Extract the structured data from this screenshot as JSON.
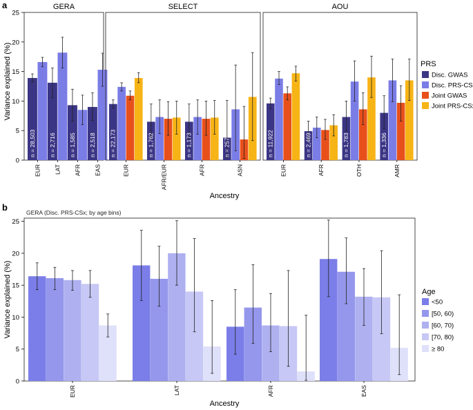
{
  "chart_data": [
    {
      "panel_label": "a",
      "type": "bar",
      "ylabel": "Variance explained (%)",
      "xlabel": "Ancestry",
      "ylim": [
        0,
        25
      ],
      "yticks": [
        0,
        5,
        10,
        15,
        20,
        25
      ],
      "legend": {
        "title": "PRS",
        "placement": "right",
        "items": [
          {
            "name": "Disc. GWAS",
            "color": "#3b3585"
          },
          {
            "name": "Disc. PRS-CSx",
            "color": "#7b7de6"
          },
          {
            "name": "Joint GWAS",
            "color": "#e8501b"
          },
          {
            "name": "Joint PRS-CSx",
            "color": "#f7b416"
          }
        ]
      },
      "facets": [
        {
          "title": "GERA",
          "groups": [
            {
              "label": "EUR",
              "n_label": "n = 28,503",
              "bars": [
                {
                  "series": "Disc. GWAS",
                  "value": 13.9,
                  "err": [
                    13.2,
                    14.6
                  ]
                },
                {
                  "series": "Disc. PRS-CSx",
                  "value": 16.6,
                  "err": [
                    15.8,
                    17.4
                  ]
                }
              ]
            },
            {
              "label": "LAT",
              "n_label": "n = 2,716",
              "bars": [
                {
                  "series": "Disc. GWAS",
                  "value": 13.1,
                  "err": [
                    10.6,
                    15.6
                  ]
                },
                {
                  "series": "Disc. PRS-CSx",
                  "value": 18.2,
                  "err": [
                    15.6,
                    20.8
                  ]
                }
              ]
            },
            {
              "label": "AFR",
              "n_label": "n = 1,585",
              "bars": [
                {
                  "series": "Disc. GWAS",
                  "value": 9.3,
                  "err": [
                    6.6,
                    12.0
                  ]
                },
                {
                  "series": "Disc. PRS-CSx",
                  "value": 8.5,
                  "err": [
                    6.0,
                    11.0
                  ]
                }
              ]
            },
            {
              "label": "EAS",
              "n_label": "n = 2,518",
              "bars": [
                {
                  "series": "Disc. GWAS",
                  "value": 9.0,
                  "err": [
                    6.7,
                    11.4
                  ]
                },
                {
                  "series": "Disc. PRS-CSx",
                  "value": 15.3,
                  "err": [
                    12.5,
                    18.1
                  ]
                }
              ]
            }
          ]
        },
        {
          "title": "SELECT",
          "groups": [
            {
              "label": "EUR",
              "n_label": "n = 22,173",
              "bars": [
                {
                  "series": "Disc. GWAS",
                  "value": 9.5,
                  "err": [
                    8.8,
                    10.2
                  ]
                },
                {
                  "series": "Disc. PRS-CSx",
                  "value": 12.4,
                  "err": [
                    11.7,
                    13.1
                  ]
                },
                {
                  "series": "Joint GWAS",
                  "value": 10.9,
                  "err": [
                    10.2,
                    11.7
                  ]
                },
                {
                  "series": "Joint PRS-CSx",
                  "value": 13.9,
                  "err": [
                    13.1,
                    14.8
                  ]
                }
              ]
            },
            {
              "label": "AFR/EUR",
              "n_label": "n = 1,762",
              "bars": [
                {
                  "series": "Disc. GWAS",
                  "value": 6.5,
                  "err": [
                    3.7,
                    9.5
                  ]
                },
                {
                  "series": "Disc. PRS-CSx",
                  "value": 7.3,
                  "err": [
                    4.5,
                    10.2
                  ]
                },
                {
                  "series": "Joint GWAS",
                  "value": 7.0,
                  "err": [
                    4.2,
                    9.9
                  ]
                },
                {
                  "series": "Joint PRS-CSx",
                  "value": 7.2,
                  "err": [
                    4.4,
                    10.0
                  ]
                }
              ]
            },
            {
              "label": "AFR",
              "n_label": "n = 1,173",
              "bars": [
                {
                  "series": "Disc. GWAS",
                  "value": 6.5,
                  "err": [
                    3.6,
                    9.5
                  ]
                },
                {
                  "series": "Disc. PRS-CSx",
                  "value": 7.3,
                  "err": [
                    4.4,
                    10.2
                  ]
                },
                {
                  "series": "Joint GWAS",
                  "value": 7.0,
                  "err": [
                    4.2,
                    10.0
                  ]
                },
                {
                  "series": "Joint PRS-CSx",
                  "value": 7.2,
                  "err": [
                    4.4,
                    10.1
                  ]
                }
              ]
            },
            {
              "label": "ASN",
              "n_label": "n = 257",
              "bars": [
                {
                  "series": "Disc. GWAS",
                  "value": 3.8,
                  "err": [
                    0.4,
                    10.1
                  ]
                },
                {
                  "series": "Disc. PRS-CSx",
                  "value": 8.6,
                  "err": [
                    1.6,
                    16.1
                  ]
                },
                {
                  "series": "Joint GWAS",
                  "value": 3.5,
                  "err": [
                    0.3,
                    9.1
                  ]
                },
                {
                  "series": "Joint PRS-CSx",
                  "value": 10.7,
                  "err": [
                    3.3,
                    18.2
                  ]
                }
              ]
            }
          ]
        },
        {
          "title": "AOU",
          "groups": [
            {
              "label": "EUR",
              "n_label": "n = 11,922",
              "bars": [
                {
                  "series": "Disc. GWAS",
                  "value": 9.6,
                  "err": [
                    8.7,
                    10.5
                  ]
                },
                {
                  "series": "Disc. PRS-CSx",
                  "value": 13.8,
                  "err": [
                    12.8,
                    15.0
                  ]
                },
                {
                  "series": "Joint GWAS",
                  "value": 11.3,
                  "err": [
                    10.2,
                    12.4
                  ]
                },
                {
                  "series": "Joint PRS-CSx",
                  "value": 14.7,
                  "err": [
                    13.4,
                    15.9
                  ]
                }
              ]
            },
            {
              "label": "AFR",
              "n_label": "n = 2,469",
              "bars": [
                {
                  "series": "Disc. GWAS",
                  "value": 4.9,
                  "err": [
                    3.3,
                    6.6
                  ]
                },
                {
                  "series": "Disc. PRS-CSx",
                  "value": 5.5,
                  "err": [
                    3.8,
                    7.3
                  ]
                },
                {
                  "series": "Joint GWAS",
                  "value": 5.1,
                  "err": [
                    3.5,
                    6.9
                  ]
                },
                {
                  "series": "Joint PRS-CSx",
                  "value": 5.9,
                  "err": [
                    4.1,
                    7.7
                  ]
                }
              ]
            },
            {
              "label": "OTH",
              "n_label": "n = 1,783",
              "bars": [
                {
                  "series": "Disc. GWAS",
                  "value": 7.3,
                  "err": [
                    4.9,
                    10.0
                  ]
                },
                {
                  "series": "Disc. PRS-CSx",
                  "value": 13.3,
                  "err": [
                    10.0,
                    16.8
                  ]
                },
                {
                  "series": "Joint GWAS",
                  "value": 8.6,
                  "err": [
                    6.0,
                    11.4
                  ]
                },
                {
                  "series": "Joint PRS-CSx",
                  "value": 14.0,
                  "err": [
                    10.6,
                    17.6
                  ]
                }
              ]
            },
            {
              "label": "AMR",
              "n_label": "n = 1,336",
              "bars": [
                {
                  "series": "Disc. GWAS",
                  "value": 8.0,
                  "err": [
                    5.3,
                    10.9
                  ]
                },
                {
                  "series": "Disc. PRS-CSx",
                  "value": 13.5,
                  "err": [
                    9.9,
                    17.1
                  ]
                },
                {
                  "series": "Joint GWAS",
                  "value": 9.7,
                  "err": [
                    6.6,
                    12.6
                  ]
                },
                {
                  "series": "Joint PRS-CSx",
                  "value": 13.5,
                  "err": [
                    10.1,
                    17.1
                  ]
                }
              ]
            }
          ]
        }
      ]
    },
    {
      "panel_label": "b",
      "type": "bar",
      "title": "GERA (Disc. PRS-CSx; by age bins)",
      "ylabel": "Variance explained (%)",
      "xlabel": "Ancestry",
      "ylim": [
        0,
        25.5
      ],
      "yticks": [
        0,
        5,
        10,
        15,
        20,
        25
      ],
      "categories": [
        "EUR",
        "LAT",
        "AFR",
        "EAS"
      ],
      "legend": {
        "title": "Age",
        "placement": "right",
        "items": [
          {
            "name": "<50",
            "color": "#7b7ee8"
          },
          {
            "name": "[50, 60)",
            "color": "#9597ec"
          },
          {
            "name": "[60, 70)",
            "color": "#aeb0f0"
          },
          {
            "name": "[70, 80)",
            "color": "#c7c8f5"
          },
          {
            "name": "≥ 80",
            "color": "#dfe0fa"
          }
        ]
      },
      "series": [
        {
          "name": "<50",
          "values": [
            16.4,
            18.1,
            8.5,
            19.1
          ],
          "err": [
            [
              14.3,
              18.5
            ],
            [
              12.6,
              23.6
            ],
            [
              4.2,
              14.3
            ],
            [
              13.2,
              25.2
            ]
          ]
        },
        {
          "name": "[50, 60)",
          "values": [
            16.1,
            16.0,
            11.5,
            17.1
          ],
          "err": [
            [
              14.3,
              17.8
            ],
            [
              11.7,
              21.1
            ],
            [
              5.9,
              18.2
            ],
            [
              12.1,
              22.4
            ]
          ]
        },
        {
          "name": "[60, 70)",
          "values": [
            15.8,
            20.0,
            8.7,
            13.2
          ],
          "err": [
            [
              14.2,
              17.3
            ],
            [
              15.0,
              25.1
            ],
            [
              4.6,
              13.7
            ],
            [
              8.7,
              17.6
            ]
          ]
        },
        {
          "name": "[70, 80)",
          "values": [
            15.2,
            14.0,
            8.6,
            13.1
          ],
          "err": [
            [
              13.1,
              17.3
            ],
            [
              7.7,
              22.3
            ],
            [
              2.3,
              17.3
            ],
            [
              7.4,
              20.4
            ]
          ]
        },
        {
          "name": "≥ 80",
          "values": [
            8.7,
            5.4,
            1.5,
            5.2
          ],
          "err": [
            [
              6.9,
              10.5
            ],
            [
              1.2,
              12.6
            ],
            [
              0.1,
              10.3
            ],
            [
              1.0,
              13.5
            ]
          ]
        }
      ]
    }
  ]
}
